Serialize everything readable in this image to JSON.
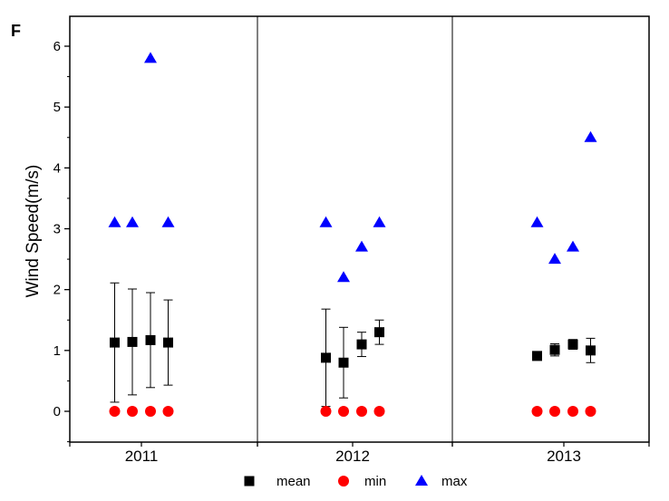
{
  "chart_data": {
    "type": "scatter",
    "panel_label": "F",
    "ylabel": "Wind Speed(m/s)",
    "xlabel": "",
    "ylim": [
      -0.5,
      6.5
    ],
    "yticks": [
      0,
      1,
      2,
      3,
      4,
      5,
      6
    ],
    "grid": false,
    "legend_position": "bottom",
    "groups": [
      {
        "label": "2011",
        "mean": [
          1.13,
          1.14,
          1.17,
          1.13
        ],
        "err": [
          0.98,
          0.87,
          0.78,
          0.7
        ],
        "min": [
          0,
          0,
          0,
          0
        ],
        "max": [
          3.1,
          3.1,
          5.8,
          3.1
        ]
      },
      {
        "label": "2012",
        "mean": [
          0.88,
          0.8,
          1.1,
          1.3
        ],
        "err": [
          0.8,
          0.58,
          0.2,
          0.2
        ],
        "min": [
          0,
          0,
          0,
          0
        ],
        "max": [
          3.1,
          2.2,
          2.7,
          3.1
        ]
      },
      {
        "label": "2013",
        "mean": [
          0.91,
          1.01,
          1.1,
          1.0
        ],
        "err": [
          0.07,
          0.1,
          0.08,
          0.2
        ],
        "min": [
          0,
          0,
          0,
          0
        ],
        "max": [
          3.1,
          2.5,
          2.7,
          4.5
        ]
      }
    ],
    "legend": [
      {
        "key": "mean",
        "label": "mean",
        "marker": "square",
        "color": "#000000"
      },
      {
        "key": "min",
        "label": "min",
        "marker": "circle",
        "color": "#ff0000"
      },
      {
        "key": "max",
        "label": "max",
        "marker": "triangle",
        "color": "#0000ff"
      }
    ]
  }
}
